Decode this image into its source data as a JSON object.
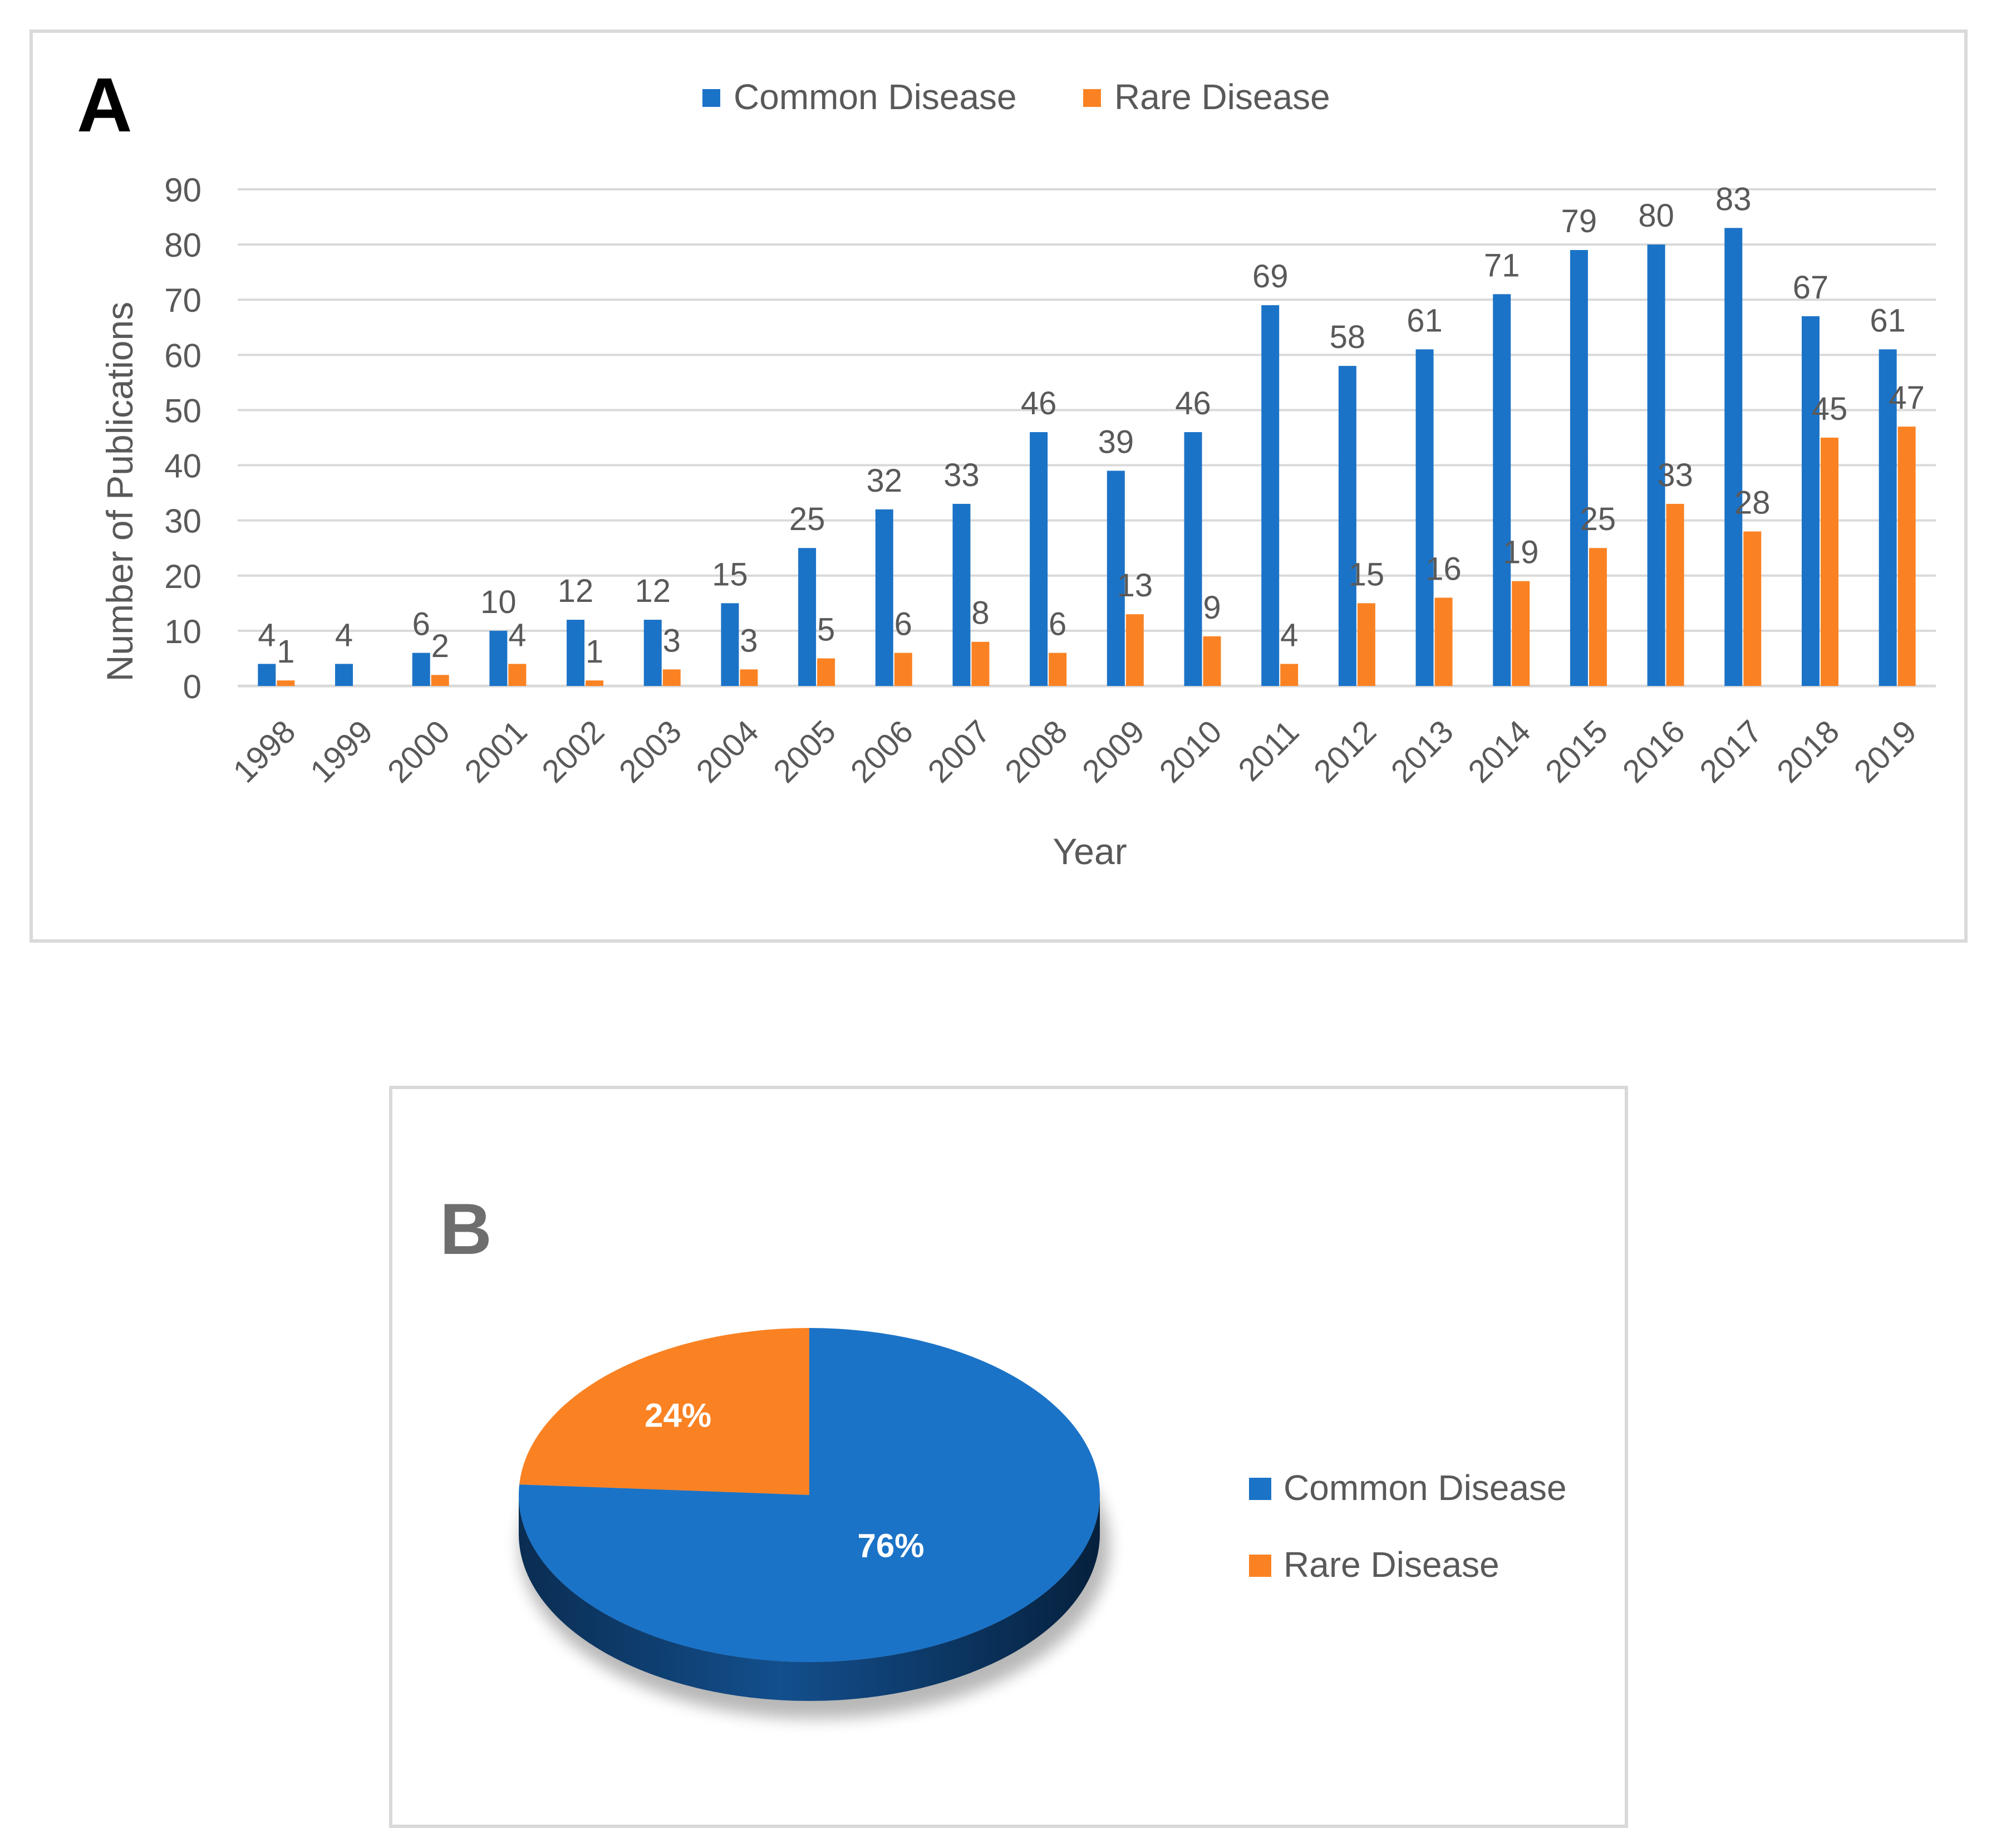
{
  "colors": {
    "common": "#1b73c7",
    "rare": "#fa8223",
    "common_side_dark": "#0a2d52",
    "common_side_mid": "#134f8d",
    "text": "#595959",
    "grid": "#d9d9d9",
    "frame": "#d9d9d9",
    "panel_letter_a": "#000000",
    "panel_letter_b": "#6e6e6e"
  },
  "chart_data": [
    {
      "type": "bar",
      "panel_label": "A",
      "title": "",
      "xlabel": "Year",
      "ylabel": "Number of Publications",
      "ylim": [
        0,
        90
      ],
      "yticks": [
        0,
        10,
        20,
        30,
        40,
        50,
        60,
        70,
        80,
        90
      ],
      "grid": true,
      "legend_position": "top-center",
      "categories": [
        "1998",
        "1999",
        "2000",
        "2001",
        "2002",
        "2003",
        "2004",
        "2005",
        "2006",
        "2007",
        "2008",
        "2009",
        "2010",
        "2011",
        "2012",
        "2013",
        "2014",
        "2015",
        "2016",
        "2017",
        "2018",
        "2019"
      ],
      "series": [
        {
          "name": "Common Disease",
          "color_key": "common",
          "values": [
            4,
            4,
            6,
            10,
            12,
            12,
            15,
            25,
            32,
            33,
            46,
            39,
            46,
            69,
            58,
            61,
            71,
            79,
            80,
            83,
            67,
            61
          ]
        },
        {
          "name": "Rare Disease",
          "color_key": "rare",
          "values": [
            1,
            null,
            2,
            4,
            1,
            3,
            3,
            5,
            6,
            8,
            6,
            13,
            9,
            4,
            15,
            16,
            19,
            25,
            33,
            28,
            45,
            47
          ]
        }
      ]
    },
    {
      "type": "pie",
      "panel_label": "B",
      "title": "",
      "legend_position": "right",
      "slices": [
        {
          "label": "Common Disease",
          "value": 76,
          "display": "76%",
          "color_key": "common"
        },
        {
          "label": "Rare Disease",
          "value": 24,
          "display": "24%",
          "color_key": "rare"
        }
      ]
    }
  ]
}
